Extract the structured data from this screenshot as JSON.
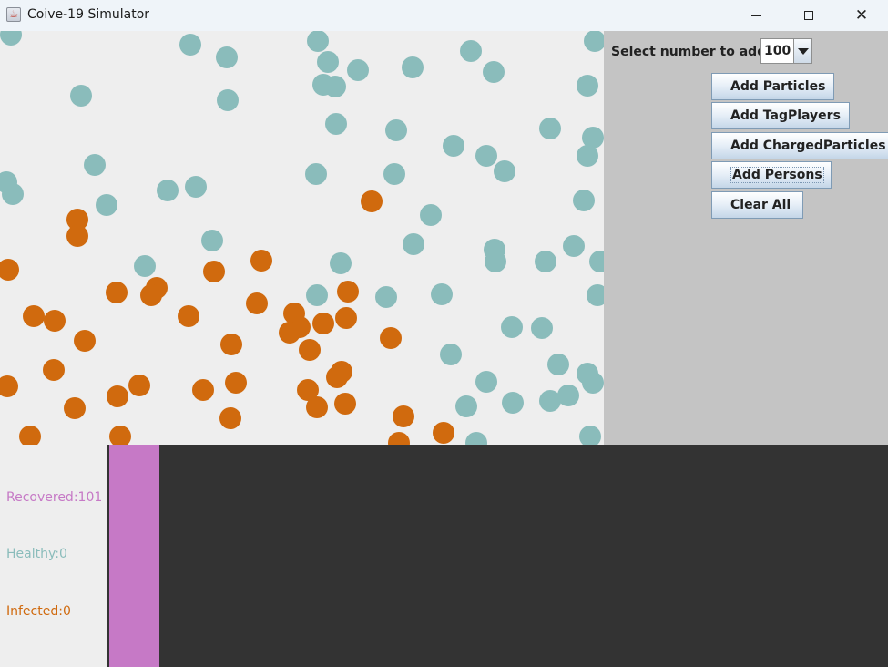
{
  "window": {
    "title": "Coive-19 Simulator",
    "app_icon": "java-cup-icon",
    "minimize_icon": "minimize-icon",
    "maximize_icon": "maximize-icon",
    "close_icon": "close-icon"
  },
  "colors": {
    "healthy": "#8abcbb",
    "infected": "#d06a0e",
    "recovered": "#c679c6",
    "canvas_bg": "#eeeeee",
    "panel_bg": "#c4c4c4",
    "chart_bg": "#333333"
  },
  "controls": {
    "select_label": "Select number to add:",
    "select_value": "100",
    "buttons": {
      "add_particles": "Add Particles",
      "add_tagplayers": "Add TagPlayers",
      "add_chargedparticles": "Add ChargedParticles",
      "add_persons": "Add Persons",
      "clear_all": "Clear All"
    }
  },
  "stats": {
    "recovered": "Recovered:101",
    "healthy": "Healthy:0",
    "infected": "Infected:0"
  },
  "population_bar": {
    "recovered_fraction": 1.0,
    "healthy_fraction": 0.0,
    "infected_fraction": 0.0
  }
}
